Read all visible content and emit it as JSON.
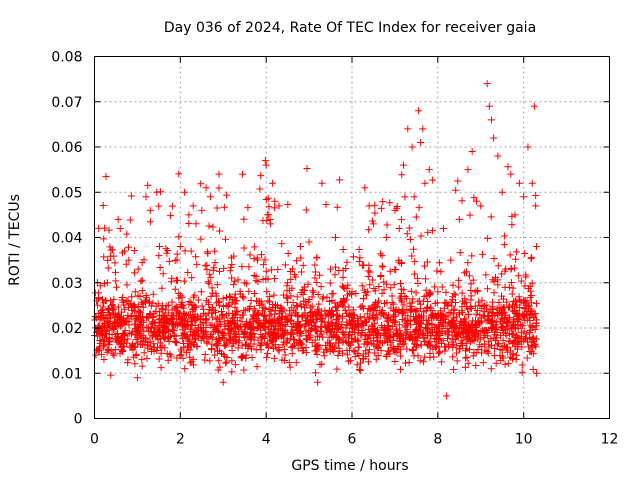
{
  "chart_data": {
    "type": "scatter",
    "title": "Day 036 of 2024, Rate Of TEC Index for receiver gaia",
    "xlabel": "GPS time / hours",
    "ylabel": "ROTI / TECUs",
    "xlim": [
      0,
      12
    ],
    "ylim": [
      0,
      0.08
    ],
    "x_ticks": [
      0,
      2,
      4,
      6,
      8,
      10,
      12
    ],
    "x_tick_labels": [
      "0",
      "2",
      "4",
      "6",
      "8",
      "10",
      "12"
    ],
    "y_ticks": [
      0,
      0.01,
      0.02,
      0.03,
      0.04,
      0.05,
      0.06,
      0.07,
      0.08
    ],
    "y_tick_labels": [
      "0",
      "0.01",
      "0.02",
      "0.03",
      "0.04",
      "0.05",
      "0.06",
      "0.07",
      "0.08"
    ],
    "grid": true,
    "marker": "+",
    "color": "#ff0000",
    "series": [
      {
        "name": "ROTI",
        "x_range": [
          0.0,
          10.3
        ],
        "typical_range": [
          0.01,
          0.03
        ],
        "points": [
          [
            0.05,
            0.026
          ],
          [
            0.1,
            0.015
          ],
          [
            0.2,
            0.024
          ],
          [
            0.3,
            0.03
          ],
          [
            0.4,
            0.025
          ],
          [
            0.55,
            0.044
          ],
          [
            0.6,
            0.042
          ],
          [
            0.7,
            0.037
          ],
          [
            0.8,
            0.035
          ],
          [
            0.95,
            0.028
          ],
          [
            1.2,
            0.049
          ],
          [
            1.3,
            0.046
          ],
          [
            1.45,
            0.05
          ],
          [
            1.5,
            0.036
          ],
          [
            1.6,
            0.032
          ],
          [
            1.8,
            0.031
          ],
          [
            2.0,
            0.038
          ],
          [
            2.1,
            0.05
          ],
          [
            2.2,
            0.045
          ],
          [
            2.3,
            0.047
          ],
          [
            2.5,
            0.046
          ],
          [
            2.6,
            0.051
          ],
          [
            2.7,
            0.049
          ],
          [
            2.8,
            0.037
          ],
          [
            2.9,
            0.054
          ],
          [
            3.2,
            0.034
          ],
          [
            3.5,
            0.03
          ],
          [
            3.8,
            0.035
          ],
          [
            3.98,
            0.057
          ],
          [
            4.0,
            0.056
          ],
          [
            4.05,
            0.045
          ],
          [
            4.1,
            0.043
          ],
          [
            4.15,
            0.052
          ],
          [
            4.2,
            0.048
          ],
          [
            4.3,
            0.047
          ],
          [
            4.5,
            0.03
          ],
          [
            4.8,
            0.038
          ],
          [
            5.0,
            0.039
          ],
          [
            5.3,
            0.052
          ],
          [
            5.5,
            0.033
          ],
          [
            5.8,
            0.029
          ],
          [
            6.0,
            0.028
          ],
          [
            6.3,
            0.051
          ],
          [
            6.4,
            0.047
          ],
          [
            6.5,
            0.043
          ],
          [
            6.7,
            0.036
          ],
          [
            6.8,
            0.04
          ],
          [
            7.0,
            0.046
          ],
          [
            7.1,
            0.042
          ],
          [
            7.2,
            0.056
          ],
          [
            7.3,
            0.064
          ],
          [
            7.4,
            0.06
          ],
          [
            7.45,
            0.049
          ],
          [
            7.55,
            0.068
          ],
          [
            7.6,
            0.061
          ],
          [
            7.65,
            0.064
          ],
          [
            7.7,
            0.052
          ],
          [
            7.8,
            0.055
          ],
          [
            8.0,
            0.028
          ],
          [
            8.3,
            0.035
          ],
          [
            8.5,
            0.044
          ],
          [
            8.7,
            0.055
          ],
          [
            8.8,
            0.059
          ],
          [
            8.9,
            0.048
          ],
          [
            9.0,
            0.047
          ],
          [
            9.15,
            0.074
          ],
          [
            9.2,
            0.069
          ],
          [
            9.25,
            0.066
          ],
          [
            9.3,
            0.062
          ],
          [
            9.4,
            0.058
          ],
          [
            9.5,
            0.05
          ],
          [
            9.7,
            0.054
          ],
          [
            9.8,
            0.045
          ],
          [
            9.9,
            0.052
          ],
          [
            10.0,
            0.049
          ],
          [
            10.1,
            0.06
          ],
          [
            10.2,
            0.052
          ],
          [
            10.25,
            0.069
          ],
          [
            10.28,
            0.047
          ],
          [
            10.3,
            0.038
          ],
          [
            10.3,
            0.01
          ],
          [
            8.2,
            0.005
          ],
          [
            5.2,
            0.008
          ],
          [
            3.0,
            0.008
          ],
          [
            1.0,
            0.009
          ]
        ]
      }
    ]
  }
}
